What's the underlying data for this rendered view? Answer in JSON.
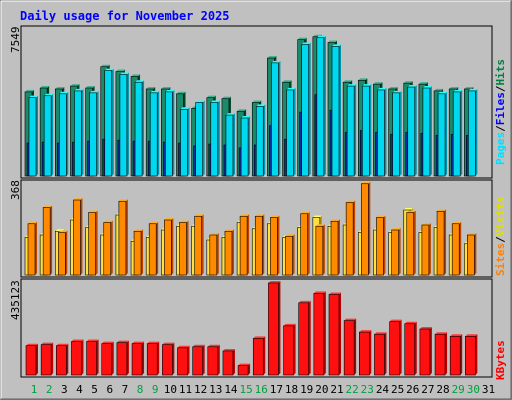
{
  "chart_data": [
    {
      "type": "bar",
      "panel": "hits-files-pages",
      "title": "Daily usage for November 2025",
      "ymax_label": "7549",
      "legend": [
        {
          "label": "Hits",
          "color": "#008040"
        },
        {
          "label": "Files",
          "color": "#0000ff"
        },
        {
          "label": "Pages",
          "color": "#00e0ff"
        }
      ],
      "categories": [
        "1",
        "2",
        "3",
        "4",
        "5",
        "6",
        "7",
        "8",
        "9",
        "10",
        "11",
        "12",
        "13",
        "14",
        "15",
        "16",
        "17",
        "18",
        "19",
        "20",
        "21",
        "22",
        "23",
        "24",
        "25",
        "26",
        "27",
        "28",
        "29",
        "30",
        "31"
      ],
      "weekend_days": [
        "1",
        "2",
        "8",
        "9",
        "15",
        "16",
        "22",
        "23",
        "29",
        "30"
      ],
      "ylim": [
        0,
        7549
      ],
      "series": [
        {
          "name": "Hits",
          "color": "#1a8a6a",
          "values": [
            4350,
            4550,
            4500,
            4650,
            4550,
            5650,
            5400,
            5150,
            4500,
            4500,
            4250,
            3500,
            4050,
            4000,
            3350,
            3800,
            6100,
            4850,
            7050,
            7200,
            6900,
            4850,
            4950,
            4750,
            4500,
            4800,
            4750,
            4400,
            4500,
            4500,
            null
          ]
        },
        {
          "name": "Files",
          "color": "#1030a0",
          "values": [
            1700,
            1750,
            1700,
            1750,
            1800,
            1900,
            1850,
            1800,
            1800,
            1750,
            1700,
            1550,
            1650,
            1600,
            1450,
            1600,
            2600,
            1900,
            3300,
            4200,
            3400,
            2250,
            2350,
            2250,
            2150,
            2250,
            2200,
            2100,
            2150,
            2100,
            null
          ]
        },
        {
          "name": "Pages",
          "color": "#00d8f0",
          "values": [
            4050,
            4150,
            4250,
            4400,
            4300,
            5450,
            5250,
            4850,
            4300,
            4350,
            3450,
            3800,
            3800,
            3150,
            3000,
            3600,
            5850,
            4450,
            6800,
            7150,
            6700,
            4650,
            4650,
            4450,
            4300,
            4600,
            4550,
            4250,
            4350,
            4400,
            null
          ]
        }
      ]
    },
    {
      "type": "bar",
      "panel": "visits-sites",
      "ymax_label": "368",
      "legend": [
        {
          "label": "Visits",
          "color": "#ffff00"
        },
        {
          "label": "Sites",
          "color": "#ff8000"
        }
      ],
      "categories": [
        "1",
        "2",
        "3",
        "4",
        "5",
        "6",
        "7",
        "8",
        "9",
        "10",
        "11",
        "12",
        "13",
        "14",
        "15",
        "16",
        "17",
        "18",
        "19",
        "20",
        "21",
        "22",
        "23",
        "24",
        "25",
        "26",
        "27",
        "28",
        "29",
        "30",
        "31"
      ],
      "ylim": [
        0,
        368
      ],
      "series": [
        {
          "name": "Visits",
          "color": "#ffe040",
          "values": [
            150,
            160,
            175,
            220,
            190,
            160,
            240,
            135,
            150,
            180,
            195,
            195,
            140,
            150,
            210,
            185,
            205,
            150,
            190,
            230,
            195,
            200,
            170,
            180,
            170,
            260,
            170,
            190,
            160,
            125,
            null
          ]
        },
        {
          "name": "Sites",
          "color": "#ff8a00",
          "values": [
            205,
            270,
            170,
            300,
            250,
            210,
            295,
            175,
            205,
            220,
            210,
            235,
            160,
            175,
            235,
            235,
            230,
            155,
            245,
            195,
            215,
            290,
            365,
            230,
            180,
            250,
            200,
            255,
            205,
            160,
            null
          ]
        }
      ]
    },
    {
      "type": "bar",
      "panel": "kbytes",
      "ymax_label": "435123",
      "legend": [
        {
          "label": "KBytes",
          "color": "#ff0000"
        }
      ],
      "categories": [
        "1",
        "2",
        "3",
        "4",
        "5",
        "6",
        "7",
        "8",
        "9",
        "10",
        "11",
        "12",
        "13",
        "14",
        "15",
        "16",
        "17",
        "18",
        "19",
        "20",
        "21",
        "22",
        "23",
        "24",
        "25",
        "26",
        "27",
        "28",
        "29",
        "30",
        "31"
      ],
      "ylim": [
        0,
        435123
      ],
      "series": [
        {
          "name": "KBytes",
          "color": "#ff1010",
          "values": [
            140000,
            145000,
            140000,
            160000,
            160000,
            150000,
            155000,
            150000,
            150000,
            145000,
            130000,
            135000,
            135000,
            115000,
            45000,
            175000,
            440000,
            235000,
            345000,
            390000,
            385000,
            260000,
            205000,
            195000,
            255000,
            245000,
            220000,
            195000,
            185000,
            185000,
            null
          ]
        }
      ]
    }
  ],
  "x_axis": {
    "days": [
      "1",
      "2",
      "3",
      "4",
      "5",
      "6",
      "7",
      "8",
      "9",
      "10",
      "11",
      "12",
      "13",
      "14",
      "15",
      "16",
      "17",
      "18",
      "19",
      "20",
      "21",
      "22",
      "23",
      "24",
      "25",
      "26",
      "27",
      "28",
      "29",
      "30",
      "31"
    ],
    "weekday_color": "#000000",
    "weekend_color": "#00a040"
  },
  "colors": {
    "border_outer": "#808080",
    "panel_bg": "#c0c0c0",
    "title_color": "#0000ff"
  }
}
